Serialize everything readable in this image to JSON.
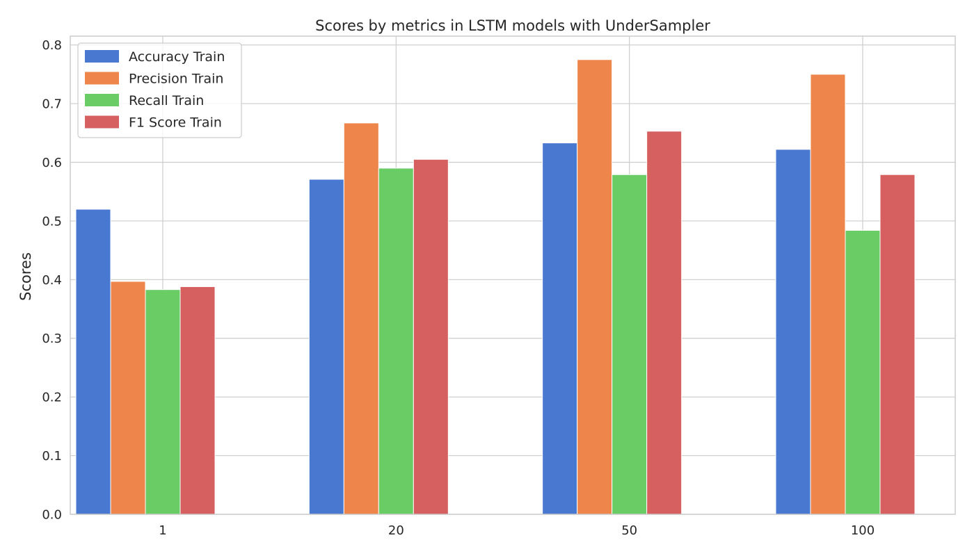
{
  "chart_data": {
    "type": "bar",
    "title": "Scores by metrics in LSTM models with UnderSampler",
    "xlabel": "",
    "ylabel": "Scores",
    "categories": [
      "1",
      "20",
      "50",
      "100"
    ],
    "series": [
      {
        "name": "Accuracy Train",
        "color": "#4878d0",
        "values": [
          0.52,
          0.571,
          0.633,
          0.622
        ]
      },
      {
        "name": "Precision Train",
        "color": "#ee854a",
        "values": [
          0.397,
          0.667,
          0.775,
          0.75
        ]
      },
      {
        "name": "Recall Train",
        "color": "#6acc64",
        "values": [
          0.383,
          0.59,
          0.579,
          0.484
        ]
      },
      {
        "name": "F1 Score Train",
        "color": "#d65f5f",
        "values": [
          0.388,
          0.605,
          0.653,
          0.579
        ]
      }
    ],
    "ylim": [
      0,
      0.815
    ],
    "yticks": [
      "0.0",
      "0.1",
      "0.2",
      "0.3",
      "0.4",
      "0.5",
      "0.6",
      "0.7",
      "0.8"
    ],
    "grid": true,
    "legend": "upper-left"
  }
}
